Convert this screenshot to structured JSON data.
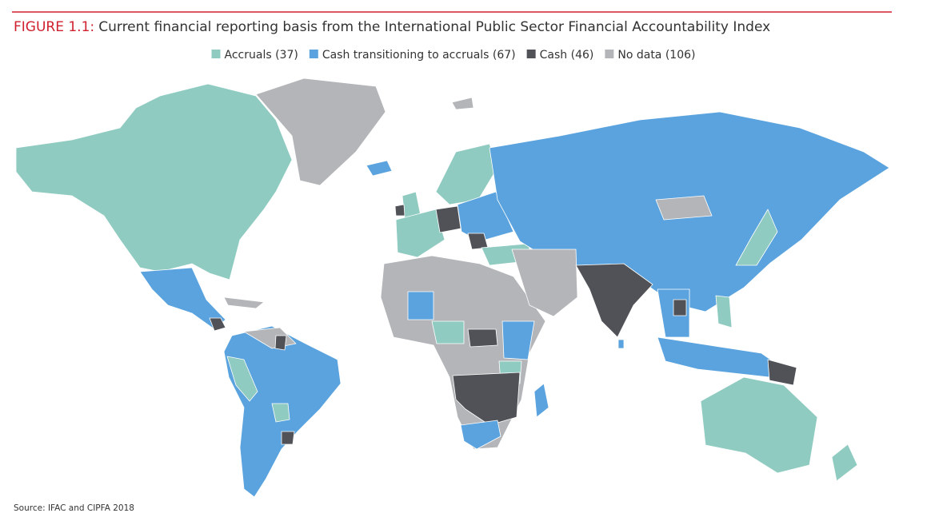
{
  "header": {
    "label": "FIGURE 1.1:",
    "title": "Current financial reporting basis from the International Public Sector Financial Accountability Index"
  },
  "legend": [
    {
      "text": "Accruals (37)",
      "color": "#8fcbc1"
    },
    {
      "text": "Cash transitioning to accruals (67)",
      "color": "#5aa3de"
    },
    {
      "text": "Cash (46)",
      "color": "#505257"
    },
    {
      "text": "No data (106)",
      "color": "#b3b5b8"
    }
  ],
  "source": "Source: IFAC and CIPFA 2018"
}
